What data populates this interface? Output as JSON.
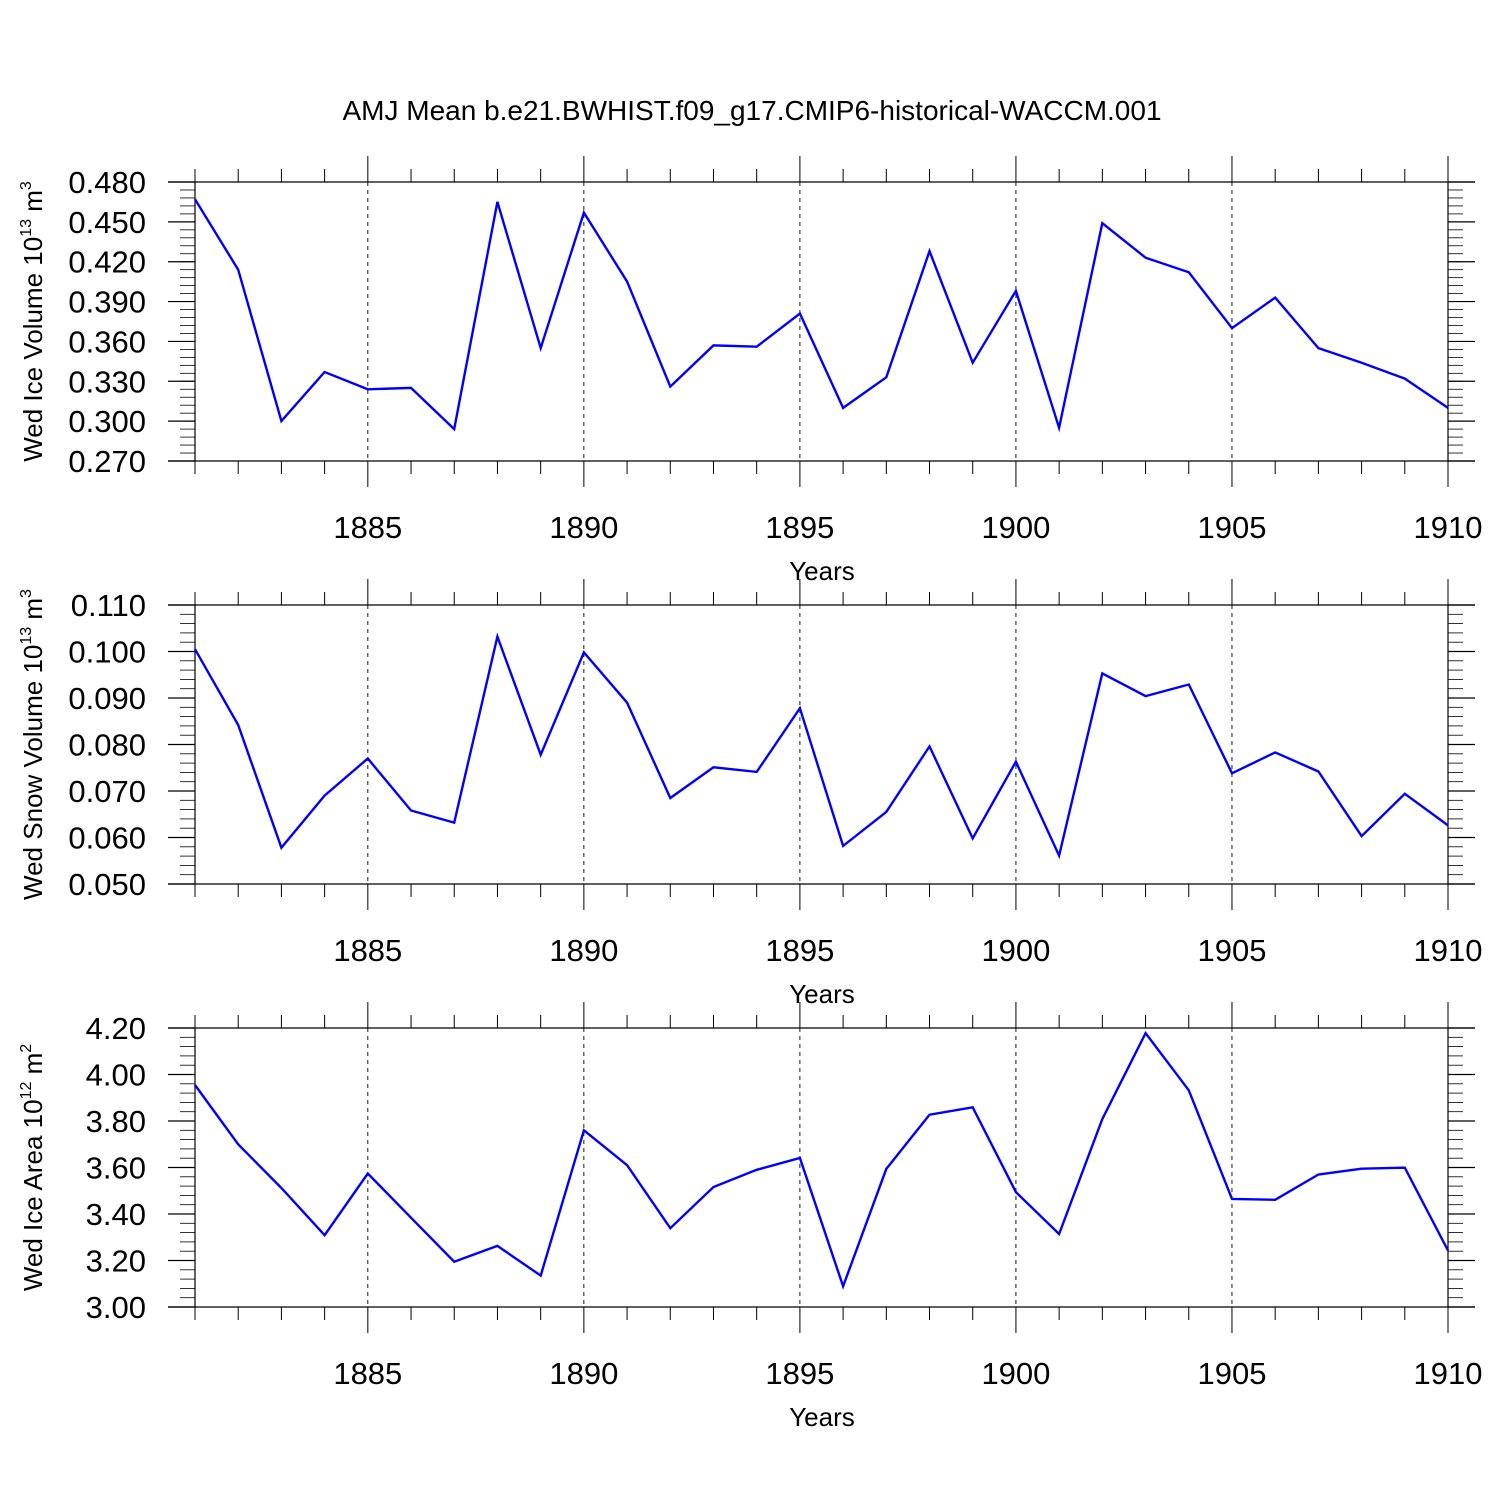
{
  "title": "AMJ Mean b.e21.BWHIST.f09_g17.CMIP6-historical-WACCM.001",
  "line_color": "#0000ff",
  "chart_data": [
    {
      "type": "line",
      "title": "AMJ Mean b.e21.BWHIST.f09_g17.CMIP6-historical-WACCM.001",
      "ylabel": {
        "prefix": "Wed Ice Volume 10",
        "exp": "13",
        "unit": " m",
        "unit_exp": "3"
      },
      "xlabel": "Years",
      "xlim": [
        1881,
        1910
      ],
      "ylim": [
        0.27,
        0.48
      ],
      "yticks": [
        0.27,
        0.3,
        0.33,
        0.36,
        0.39,
        0.42,
        0.45,
        0.48
      ],
      "ytick_labels": [
        "0.270",
        "0.300",
        "0.330",
        "0.360",
        "0.390",
        "0.420",
        "0.450",
        "0.480"
      ],
      "yminor": 0.006,
      "xticks": [
        1885,
        1890,
        1895,
        1900,
        1905,
        1910
      ],
      "xtick_labels": [
        "1885",
        "1890",
        "1895",
        "1900",
        "1905",
        "1910"
      ],
      "x": [
        1881,
        1882,
        1883,
        1884,
        1885,
        1886,
        1887,
        1888,
        1889,
        1890,
        1891,
        1892,
        1893,
        1894,
        1895,
        1896,
        1897,
        1898,
        1899,
        1900,
        1901,
        1902,
        1903,
        1904,
        1905,
        1906,
        1907,
        1908,
        1909,
        1910
      ],
      "series": [
        {
          "name": "Wed Ice Volume",
          "values": [
            0.467,
            0.414,
            0.3,
            0.337,
            0.324,
            0.325,
            0.294,
            0.465,
            0.355,
            0.457,
            0.405,
            0.326,
            0.357,
            0.356,
            0.381,
            0.31,
            0.333,
            0.428,
            0.344,
            0.398,
            0.295,
            0.449,
            0.423,
            0.412,
            0.37,
            0.393,
            0.355,
            0.344,
            0.332,
            0.31
          ]
        }
      ]
    },
    {
      "type": "line",
      "ylabel": {
        "prefix": "Wed Snow Volume 10",
        "exp": "13",
        "unit": " m",
        "unit_exp": "3"
      },
      "xlabel": "Years",
      "xlim": [
        1881,
        1910
      ],
      "ylim": [
        0.05,
        0.11
      ],
      "yticks": [
        0.05,
        0.06,
        0.07,
        0.08,
        0.09,
        0.1,
        0.11
      ],
      "ytick_labels": [
        "0.050",
        "0.060",
        "0.070",
        "0.080",
        "0.090",
        "0.100",
        "0.110"
      ],
      "yminor": 0.002,
      "xticks": [
        1885,
        1890,
        1895,
        1900,
        1905,
        1910
      ],
      "xtick_labels": [
        "1885",
        "1890",
        "1895",
        "1900",
        "1905",
        "1910"
      ],
      "x": [
        1881,
        1882,
        1883,
        1884,
        1885,
        1886,
        1887,
        1888,
        1889,
        1890,
        1891,
        1892,
        1893,
        1894,
        1895,
        1896,
        1897,
        1898,
        1899,
        1900,
        1901,
        1902,
        1903,
        1904,
        1905,
        1906,
        1907,
        1908,
        1909,
        1910
      ],
      "series": [
        {
          "name": "Wed Snow Volume",
          "values": [
            0.1005,
            0.0842,
            0.0578,
            0.069,
            0.077,
            0.0658,
            0.0632,
            0.1032,
            0.0778,
            0.0998,
            0.089,
            0.0685,
            0.0751,
            0.0741,
            0.0878,
            0.0582,
            0.0655,
            0.0796,
            0.0598,
            0.0763,
            0.0561,
            0.0953,
            0.0904,
            0.0929,
            0.0738,
            0.0783,
            0.0742,
            0.0603,
            0.0694,
            0.0626
          ]
        }
      ]
    },
    {
      "type": "line",
      "ylabel": {
        "prefix": "Wed Ice Area 10",
        "exp": "12",
        "unit": " m",
        "unit_exp": "2"
      },
      "xlabel": "Years",
      "xlim": [
        1881,
        1910
      ],
      "ylim": [
        3.0,
        4.2
      ],
      "yticks": [
        3.0,
        3.2,
        3.4,
        3.6,
        3.8,
        4.0,
        4.2
      ],
      "ytick_labels": [
        "3.00",
        "3.20",
        "3.40",
        "3.60",
        "3.80",
        "4.00",
        "4.20"
      ],
      "yminor": 0.04,
      "xticks": [
        1885,
        1890,
        1895,
        1900,
        1905,
        1910
      ],
      "xtick_labels": [
        "1885",
        "1890",
        "1895",
        "1900",
        "1905",
        "1910"
      ],
      "x": [
        1881,
        1882,
        1883,
        1884,
        1885,
        1886,
        1887,
        1888,
        1889,
        1890,
        1891,
        1892,
        1893,
        1894,
        1895,
        1896,
        1897,
        1898,
        1899,
        1900,
        1901,
        1902,
        1903,
        1904,
        1905,
        1906,
        1907,
        1908,
        1909,
        1910
      ],
      "series": [
        {
          "name": "Wed Ice Area",
          "values": [
            3.955,
            3.7,
            3.512,
            3.309,
            3.574,
            3.384,
            3.195,
            3.263,
            3.135,
            3.76,
            3.61,
            3.339,
            3.516,
            3.59,
            3.641,
            3.089,
            3.594,
            3.827,
            3.859,
            3.494,
            3.314,
            3.808,
            4.178,
            3.932,
            3.465,
            3.461,
            3.57,
            3.595,
            3.599,
            3.243
          ]
        }
      ]
    }
  ]
}
